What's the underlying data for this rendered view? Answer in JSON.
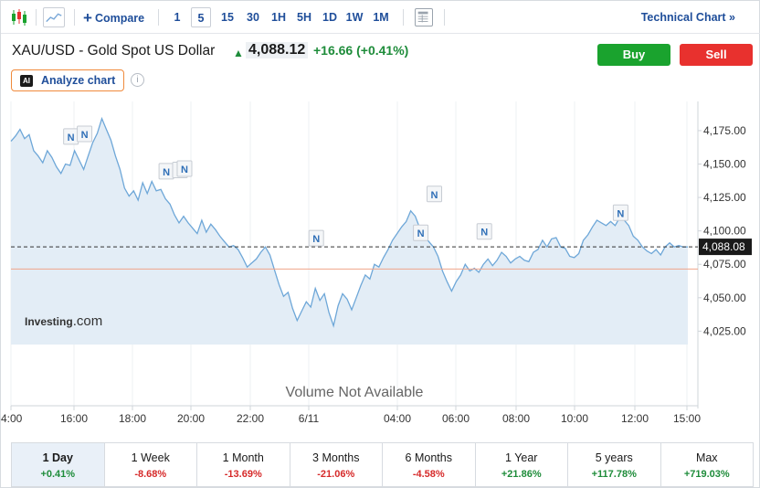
{
  "toolbar": {
    "compare_label": "Compare",
    "timeframes": [
      "1",
      "5",
      "15",
      "30",
      "1H",
      "5H",
      "1D",
      "1W",
      "1M"
    ],
    "active_timeframe": "5",
    "technical_chart_label": "Technical Chart »"
  },
  "header": {
    "title": "XAU/USD - Gold Spot US Dollar",
    "price": "4,088.12",
    "change": "+16.66",
    "change_pct": "(+0.41%)",
    "buy_label": "Buy",
    "sell_label": "Sell",
    "analyze_label": "Analyze chart",
    "ai_badge": "AI",
    "info_glyph": "i"
  },
  "chart": {
    "watermark": "Investing",
    "watermark_suffix": ".com",
    "volume_text": "Volume Not Available",
    "current_price_label": "4,088.08",
    "news_marker": "N",
    "colors": {
      "line": "#6ea7d8",
      "fill": "#e3edf6",
      "reference": "#f0a58a"
    }
  },
  "chart_data": {
    "type": "area",
    "x_tick_labels": [
      "4:00",
      "16:00",
      "18:00",
      "20:00",
      "22:00",
      "6/11",
      "04:00",
      "06:00",
      "08:00",
      "10:00",
      "12:00",
      "15:00"
    ],
    "y_tick_labels": [
      "4,175.00",
      "4,150.00",
      "4,125.00",
      "4,100.00",
      "4,075.00",
      "4,050.00",
      "4,025.00"
    ],
    "ylim": [
      4015,
      4190
    ],
    "current_price": 4088.08,
    "previous_close": 4071.46,
    "series": [
      {
        "values": [
          4167,
          4171,
          4176,
          4169,
          4172,
          4160,
          4156,
          4151,
          4160,
          4155,
          4148,
          4143,
          4150,
          4149,
          4160,
          4153,
          4146,
          4156,
          4166,
          4173,
          4184,
          4176,
          4168,
          4156,
          4146,
          4132,
          4126,
          4130,
          4123,
          4136,
          4128,
          4137,
          4130,
          4131,
          4124,
          4120,
          4112,
          4106,
          4111,
          4106,
          4102,
          4098,
          4108,
          4099,
          4105,
          4101,
          4096,
          4092,
          4088,
          4089,
          4086,
          4080,
          4073,
          4076,
          4079,
          4084,
          4088,
          4082,
          4071,
          4060,
          4051,
          4054,
          4042,
          4033,
          4040,
          4047,
          4043,
          4057,
          4048,
          4053,
          4039,
          4029,
          4044,
          4053,
          4049,
          4041,
          4050,
          4059,
          4067,
          4064,
          4075,
          4073,
          4080,
          4086,
          4093,
          4098,
          4103,
          4107,
          4115,
          4111,
          4102,
          4096,
          4092,
          4088,
          4081,
          4070,
          4062,
          4055,
          4062,
          4067,
          4075,
          4070,
          4072,
          4069,
          4075,
          4079,
          4074,
          4078,
          4084,
          4081,
          4076,
          4079,
          4081,
          4078,
          4077,
          4084,
          4086,
          4093,
          4088,
          4094,
          4095,
          4088,
          4087,
          4081,
          4080,
          4083,
          4093,
          4097,
          4103,
          4108,
          4106,
          4104,
          4107,
          4104,
          4110,
          4108,
          4104,
          4096,
          4093,
          4088,
          4085,
          4083,
          4086,
          4082,
          4088,
          4091,
          4088,
          4089,
          4088,
          4088
        ]
      }
    ],
    "news_markers_at": [
      4160,
      4162,
      4134,
      4135,
      4136,
      4084,
      4088,
      4117,
      4089,
      4103
    ]
  },
  "periods": [
    {
      "label": "1 Day",
      "change": "+0.41%",
      "dir": "pos"
    },
    {
      "label": "1 Week",
      "change": "-8.68%",
      "dir": "neg"
    },
    {
      "label": "1 Month",
      "change": "-13.69%",
      "dir": "neg"
    },
    {
      "label": "3 Months",
      "change": "-21.06%",
      "dir": "neg"
    },
    {
      "label": "6 Months",
      "change": "-4.58%",
      "dir": "neg"
    },
    {
      "label": "1 Year",
      "change": "+21.86%",
      "dir": "pos"
    },
    {
      "label": "5 years",
      "change": "+117.78%",
      "dir": "pos"
    },
    {
      "label": "Max",
      "change": "+719.03%",
      "dir": "pos"
    }
  ]
}
